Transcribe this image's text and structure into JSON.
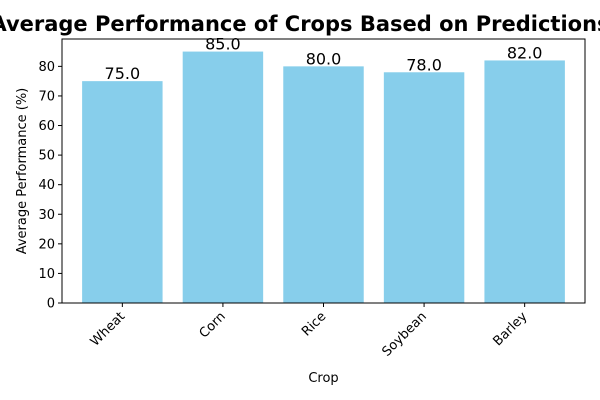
{
  "chart_data": {
    "type": "bar",
    "title": "Average Performance of Crops Based on Predictions",
    "xlabel": "Crop",
    "ylabel": "Average Performance (%)",
    "categories": [
      "Wheat",
      "Corn",
      "Rice",
      "Soybean",
      "Barley"
    ],
    "values": [
      75.0,
      85.0,
      80.0,
      78.0,
      82.0
    ],
    "data_labels": [
      "75.0",
      "85.0",
      "80.0",
      "78.0",
      "82.0"
    ],
    "ylim": [
      0,
      89.25
    ],
    "yticks": [
      0,
      10,
      20,
      30,
      40,
      50,
      60,
      70,
      80
    ],
    "ytick_labels": [
      "0",
      "10",
      "20",
      "30",
      "40",
      "50",
      "60",
      "70",
      "80"
    ],
    "grid": false,
    "legend": "none",
    "bar_color": "#87ceeb"
  }
}
